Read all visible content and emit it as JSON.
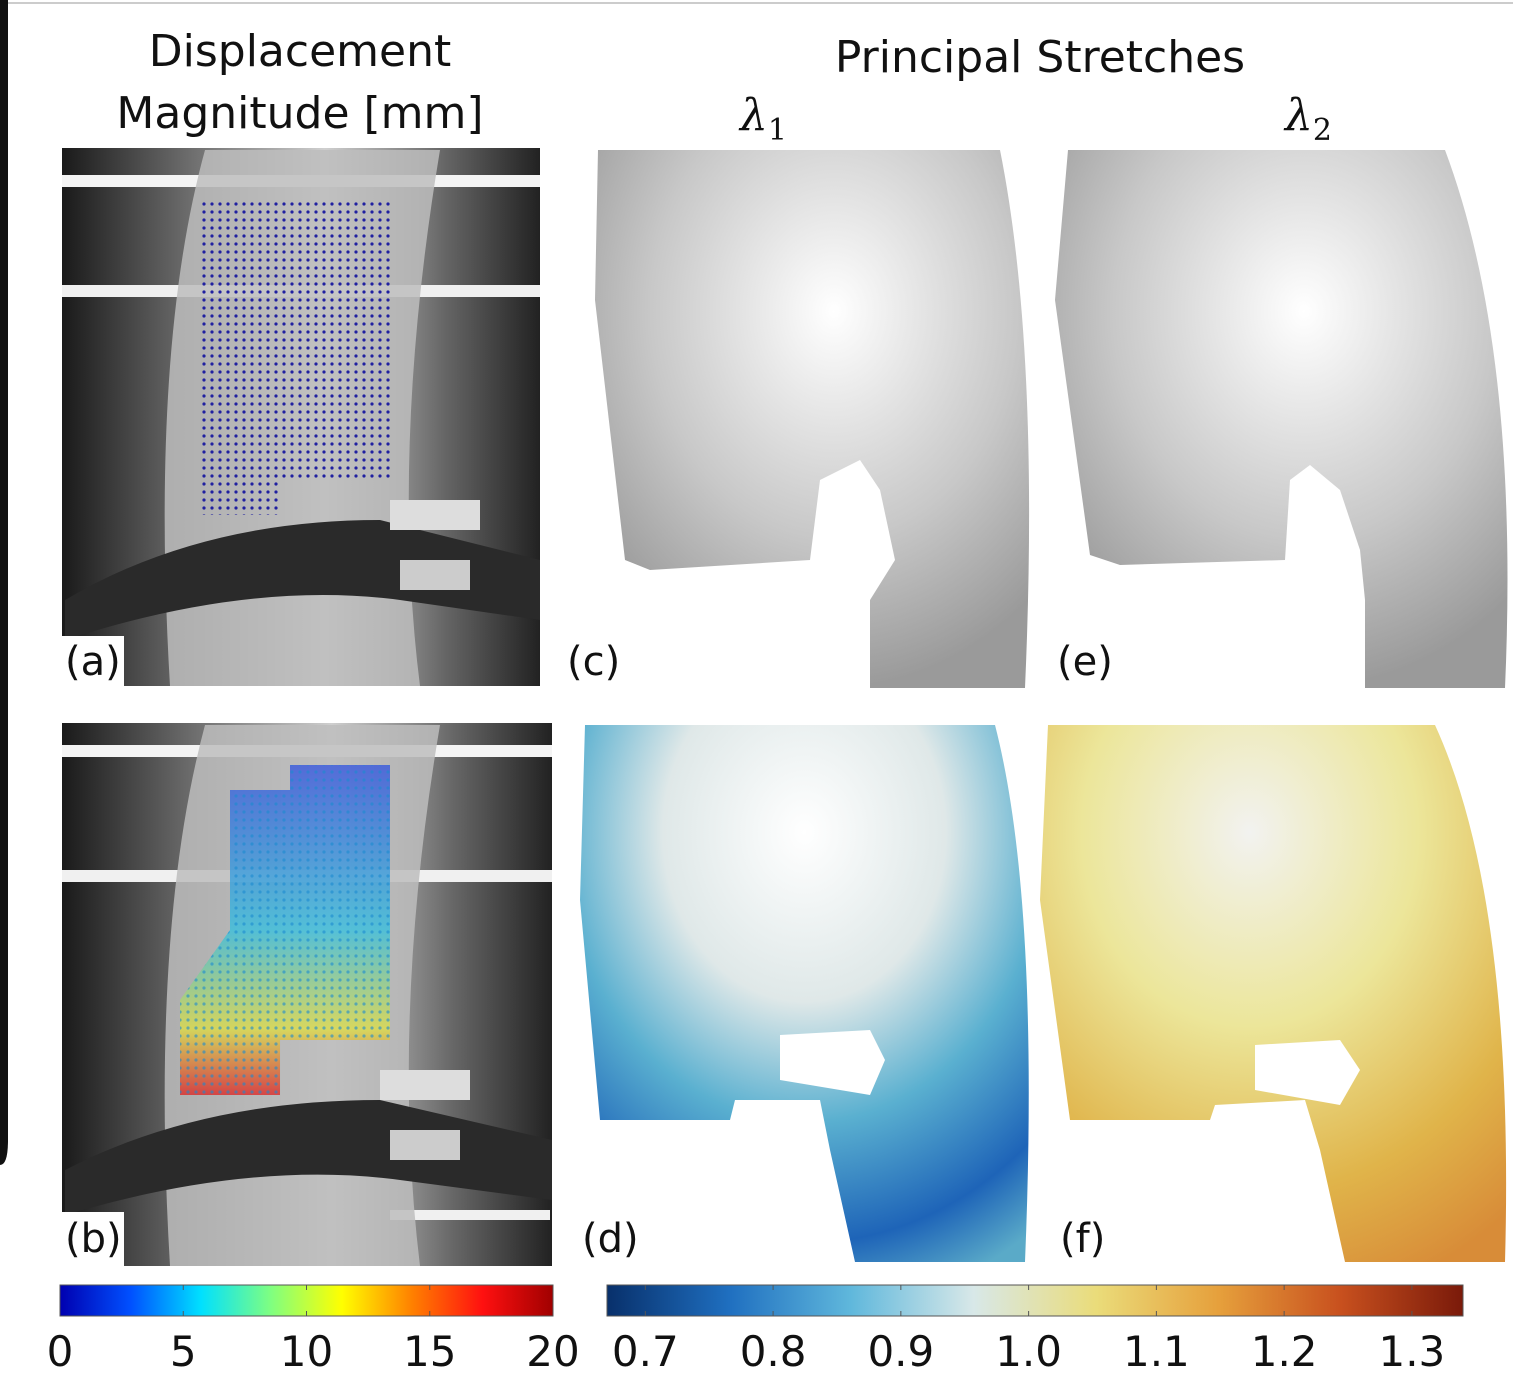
{
  "header": {
    "left_title_line1": "Displacement",
    "left_title_line2": "Magnitude [mm]",
    "right_title": "Principal Stretches",
    "lambda1": "λ",
    "lambda1_sub": "1",
    "lambda2": "λ",
    "lambda2_sub": "2"
  },
  "panels": {
    "a": "(a)",
    "b": "(b)",
    "c": "(c)",
    "d": "(d)",
    "e": "(e)",
    "f": "(f)"
  },
  "colorbars": [
    {
      "range": [
        0,
        20
      ],
      "ticks": [
        0,
        5,
        10,
        15,
        20
      ],
      "colors": [
        "#0000b0",
        "#0050ff",
        "#00e0ff",
        "#80ff80",
        "#ffff00",
        "#ff8000",
        "#ff1010",
        "#a00000"
      ]
    },
    {
      "range": [
        0.67,
        1.34
      ],
      "ticks": [
        0.7,
        0.8,
        0.9,
        {
          "value": 1,
          "label": "1.0"
        },
        1.1,
        1.2,
        1.3
      ],
      "colors": [
        "#08306b",
        "#1f6fc0",
        "#60b8dc",
        "#d8e8e8",
        "#eadc7a",
        "#e6a03c",
        "#c8501e",
        "#7a1a0a"
      ]
    }
  ]
}
